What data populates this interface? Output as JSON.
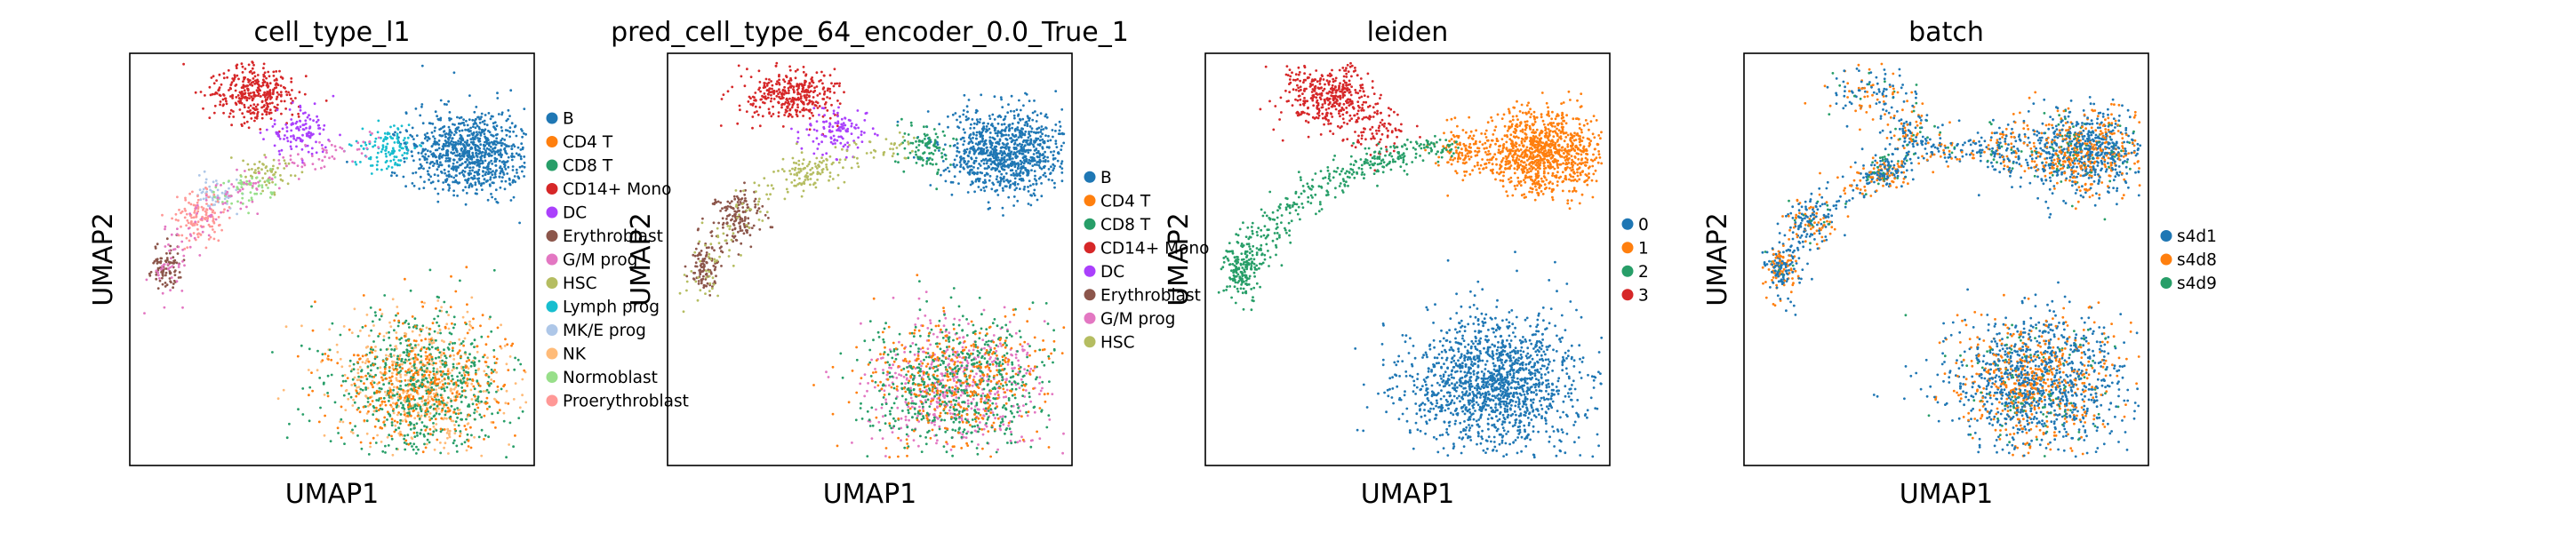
{
  "chart_data": [
    {
      "type": "scatter",
      "title": "cell_type_l1",
      "xlabel": "UMAP1",
      "ylabel": "UMAP2",
      "grid": false,
      "legend": "right",
      "series": [
        {
          "name": "B",
          "color": "#1f77b4"
        },
        {
          "name": "CD4 T",
          "color": "#ff7f0e"
        },
        {
          "name": "CD8 T",
          "color": "#279e68"
        },
        {
          "name": "CD14+ Mono",
          "color": "#d62728"
        },
        {
          "name": "DC",
          "color": "#aa40fc"
        },
        {
          "name": "Erythroblast",
          "color": "#8c564b"
        },
        {
          "name": "G/M prog",
          "color": "#e377c2"
        },
        {
          "name": "HSC",
          "color": "#b5bd61"
        },
        {
          "name": "Lymph prog",
          "color": "#17becf"
        },
        {
          "name": "MK/E prog",
          "color": "#aec7e8"
        },
        {
          "name": "NK",
          "color": "#ffbb78"
        },
        {
          "name": "Normoblast",
          "color": "#98df8a"
        },
        {
          "name": "Proerythroblast",
          "color": "#ff9896"
        }
      ]
    },
    {
      "type": "scatter",
      "title": "pred_cell_type_64_encoder_0.0_True_1",
      "xlabel": "UMAP1",
      "ylabel": "UMAP2",
      "grid": false,
      "legend": "right",
      "series": [
        {
          "name": "B",
          "color": "#1f77b4"
        },
        {
          "name": "CD4 T",
          "color": "#ff7f0e"
        },
        {
          "name": "CD8 T",
          "color": "#279e68"
        },
        {
          "name": "CD14+ Mono",
          "color": "#d62728"
        },
        {
          "name": "DC",
          "color": "#aa40fc"
        },
        {
          "name": "Erythroblast",
          "color": "#8c564b"
        },
        {
          "name": "G/M prog",
          "color": "#e377c2"
        },
        {
          "name": "HSC",
          "color": "#b5bd61"
        }
      ]
    },
    {
      "type": "scatter",
      "title": "leiden",
      "xlabel": "UMAP1",
      "ylabel": "UMAP2",
      "grid": false,
      "legend": "right",
      "series": [
        {
          "name": "0",
          "color": "#1f77b4"
        },
        {
          "name": "1",
          "color": "#ff7f0e"
        },
        {
          "name": "2",
          "color": "#279e68"
        },
        {
          "name": "3",
          "color": "#d62728"
        }
      ]
    },
    {
      "type": "scatter",
      "title": "batch",
      "xlabel": "UMAP1",
      "ylabel": "UMAP2",
      "grid": false,
      "legend": "right",
      "series": [
        {
          "name": "s4d1",
          "color": "#1f77b4"
        },
        {
          "name": "s4d8",
          "color": "#ff7f0e"
        },
        {
          "name": "s4d9",
          "color": "#279e68"
        }
      ]
    }
  ]
}
